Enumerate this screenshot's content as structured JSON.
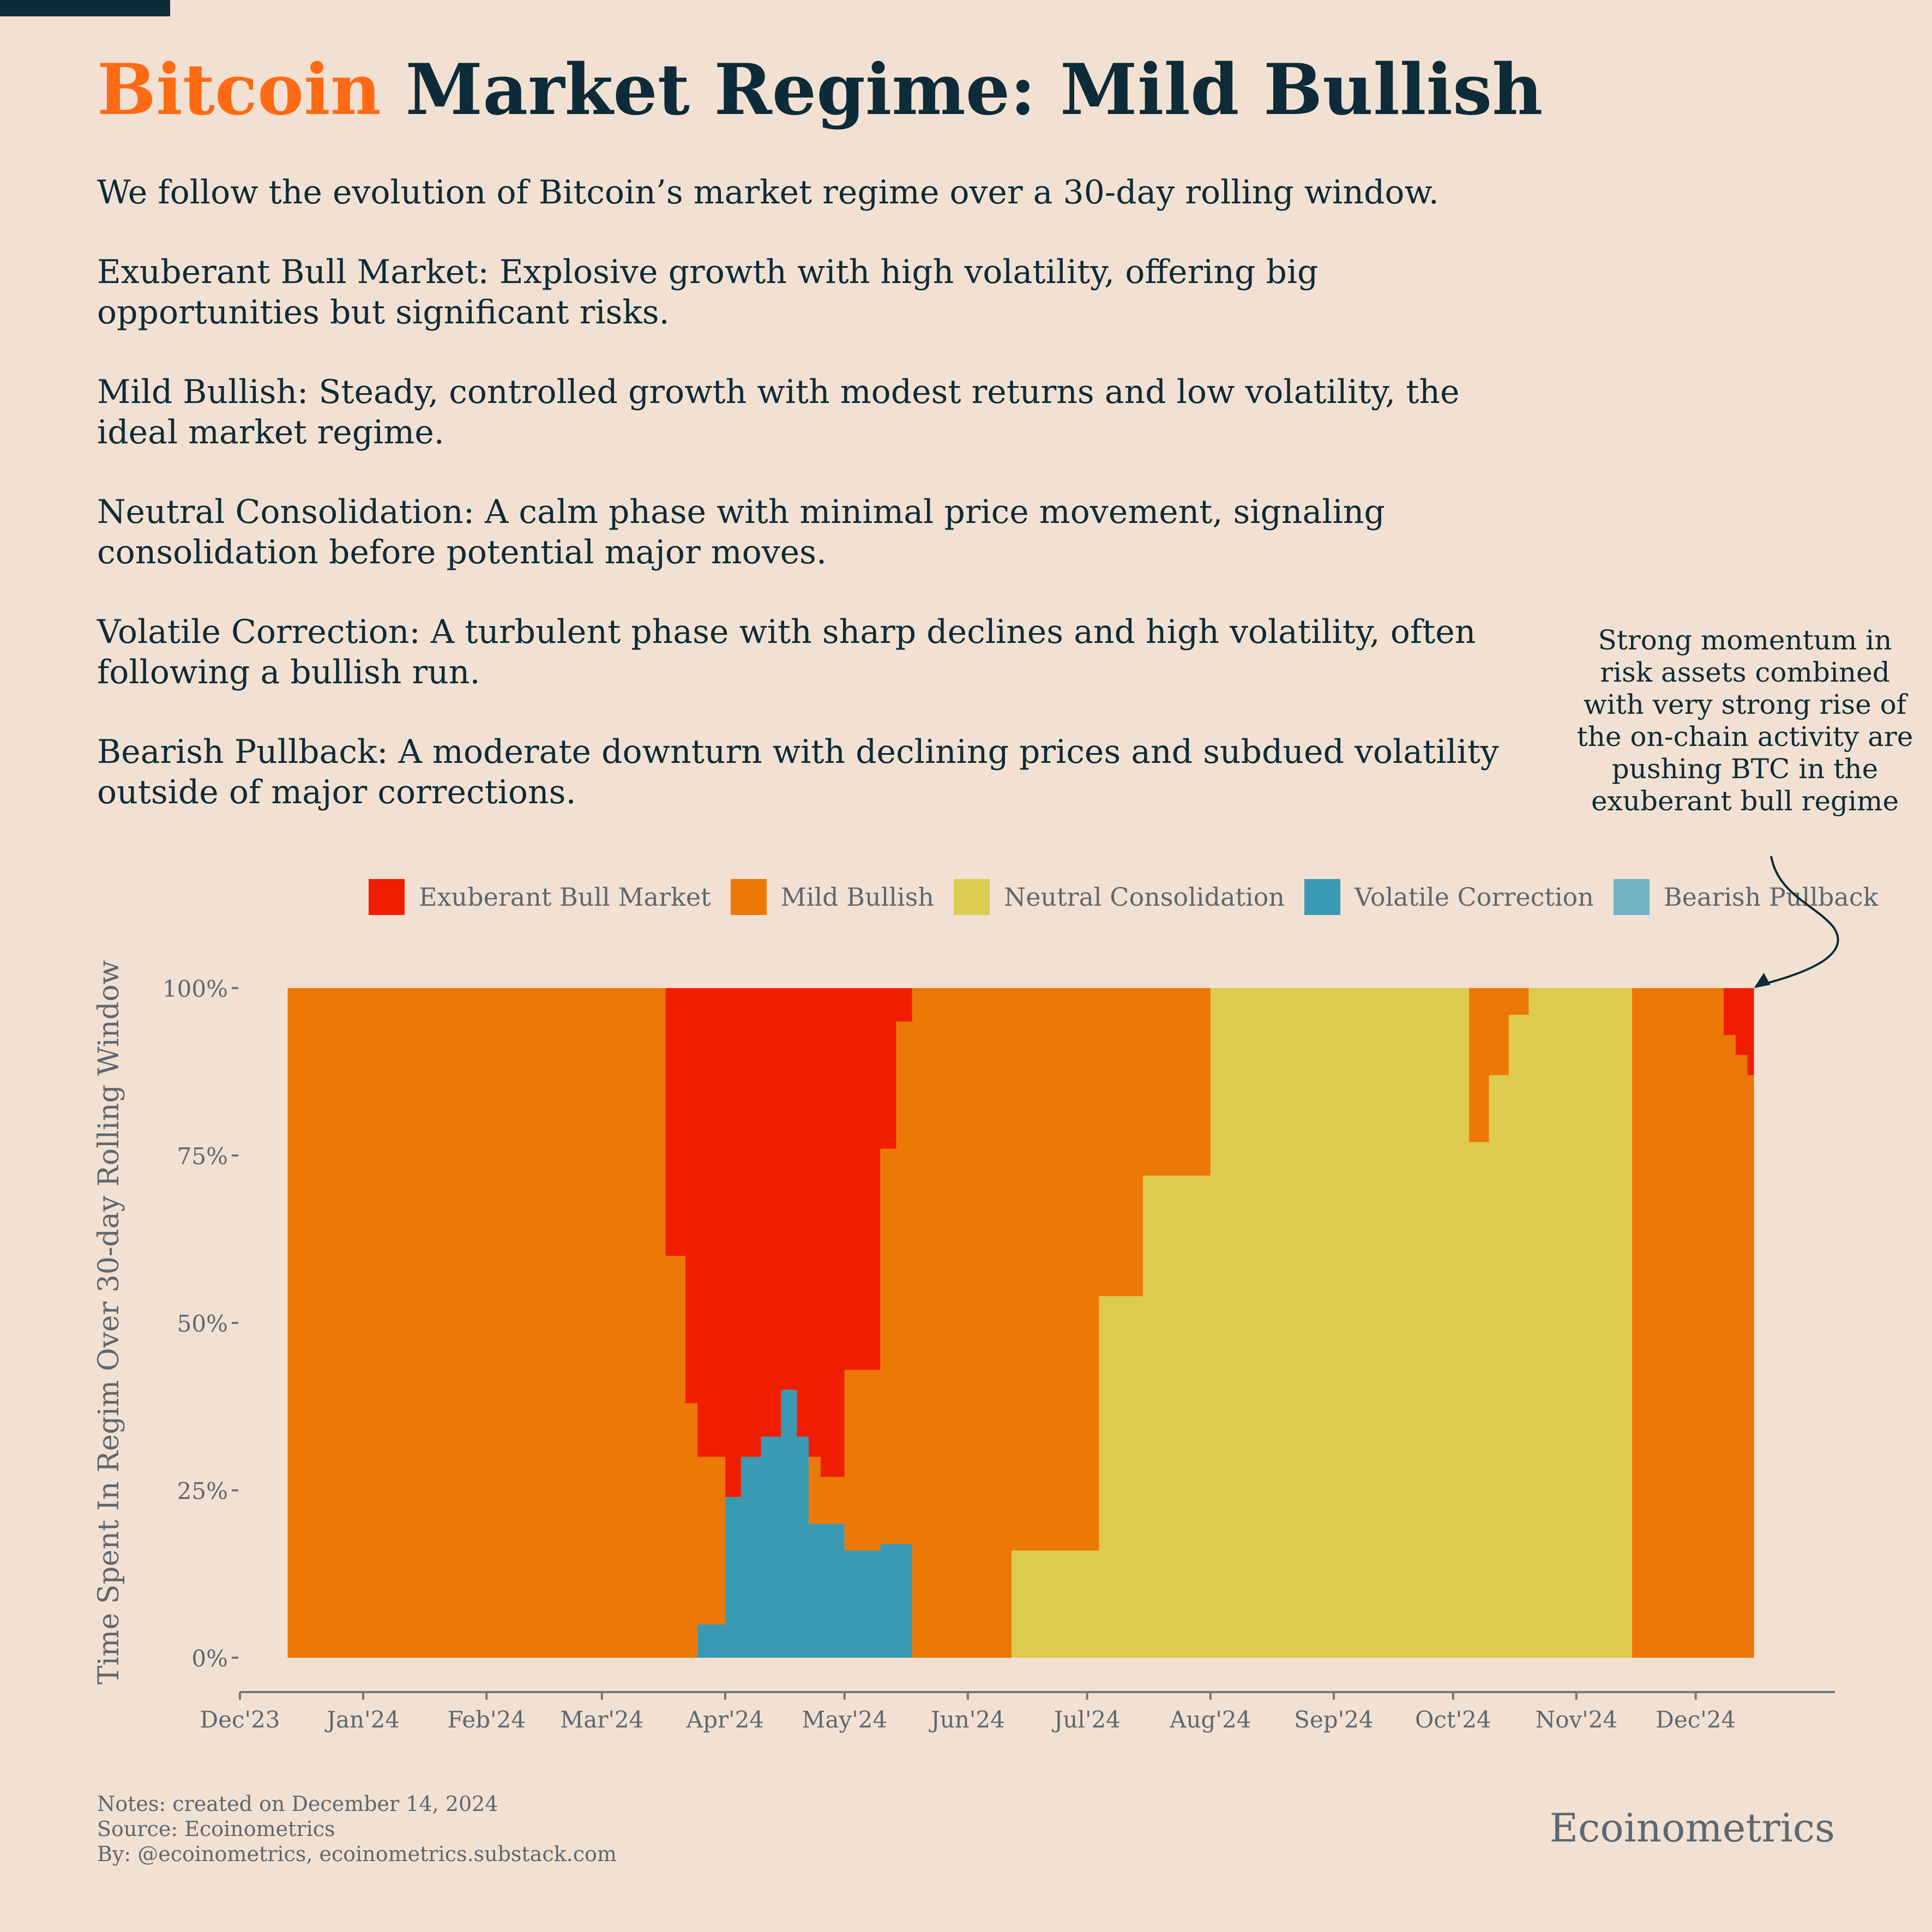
{
  "title": {
    "accent": "Bitcoin",
    "rest": " Market Regime: Mild Bullish"
  },
  "intro": [
    "We follow the evolution of Bitcoin’s market regime over a 30-day rolling window.",
    "Exuberant Bull Market: Explosive growth with high volatility, offering big opportunities but significant risks.",
    "Mild Bullish: Steady, controlled growth with modest returns and low volatility, the ideal market regime.",
    "Neutral Consolidation: A calm phase with minimal price movement, signaling consolidation before potential major moves.",
    "Volatile Correction: A turbulent phase with sharp declines and high volatility, often following a bullish run.",
    "Bearish Pullback: A moderate downturn with declining prices and subdued volatility outside of major corrections."
  ],
  "annotation": "Strong momentum in risk assets combined with very strong rise of the on-chain activity are pushing BTC in the exuberant bull regime",
  "notes": {
    "line1": "Notes: created on December 14, 2024",
    "line2": "Source: Ecoinometrics",
    "line3": "By: @ecoinometrics, ecoinometrics.substack.com"
  },
  "brand": "Ecoinometrics",
  "colors": {
    "background": "#f2e1d2",
    "text_dark": "#0d2b38",
    "accent": "#ff6b14",
    "muted": "#5d6770",
    "axis": "#6b7a82"
  },
  "chart_data": {
    "type": "area",
    "stacked": true,
    "normalized": true,
    "ylabel": "Time Spent In Regim Over 30-day Rolling Window",
    "ylim": [
      0,
      100
    ],
    "y_ticks": [
      "0%",
      "25%",
      "50%",
      "75%",
      "100%"
    ],
    "x_range": [
      "2023-12-01",
      "2025-01-05"
    ],
    "x_ticks": [
      "Dec'23",
      "Jan'24",
      "Feb'24",
      "Mar'24",
      "Apr'24",
      "May'24",
      "Jun'24",
      "Jul'24",
      "Aug'24",
      "Sep'24",
      "Oct'24",
      "Nov'24",
      "Dec'24"
    ],
    "x_tick_dates": [
      "2023-12-01",
      "2024-01-01",
      "2024-02-01",
      "2024-03-01",
      "2024-04-01",
      "2024-05-01",
      "2024-06-01",
      "2024-07-01",
      "2024-08-01",
      "2024-09-01",
      "2024-10-01",
      "2024-11-01",
      "2024-12-01"
    ],
    "legend_position": "top",
    "x": [
      "2023-12-13",
      "2024-03-07",
      "2024-03-17",
      "2024-03-22",
      "2024-03-25",
      "2024-04-01",
      "2024-04-05",
      "2024-04-10",
      "2024-04-15",
      "2024-04-19",
      "2024-04-22",
      "2024-04-25",
      "2024-05-01",
      "2024-05-10",
      "2024-05-14",
      "2024-05-18",
      "2024-06-02",
      "2024-06-12",
      "2024-07-04",
      "2024-07-15",
      "2024-08-01",
      "2024-09-01",
      "2024-09-20",
      "2024-09-25",
      "2024-10-05",
      "2024-10-10",
      "2024-10-15",
      "2024-10-20",
      "2024-10-24",
      "2024-11-15",
      "2024-12-08",
      "2024-12-11",
      "2024-12-14"
    ],
    "series": [
      {
        "name": "Exuberant Bull Market",
        "color": "#f01e00",
        "values": [
          0,
          0,
          40,
          62,
          70,
          76,
          70,
          67,
          60,
          67,
          70,
          73,
          57,
          24,
          5,
          0,
          0,
          0,
          0,
          0,
          0,
          0,
          0,
          0,
          0,
          0,
          0,
          0,
          0,
          0,
          7,
          10,
          13
        ]
      },
      {
        "name": "Mild Bullish",
        "color": "#ec7805",
        "values": [
          100,
          100,
          60,
          38,
          25,
          0,
          0,
          0,
          0,
          0,
          10,
          7,
          27,
          59,
          78,
          100,
          100,
          84,
          46,
          28,
          0,
          0,
          0,
          0,
          23,
          13,
          4,
          0,
          0,
          100,
          93,
          90,
          87
        ]
      },
      {
        "name": "Neutral Consolidation",
        "color": "#dccb4f",
        "values": [
          0,
          0,
          0,
          0,
          0,
          0,
          0,
          0,
          0,
          0,
          0,
          0,
          0,
          0,
          0,
          0,
          0,
          16,
          54,
          72,
          100,
          100,
          100,
          100,
          77,
          87,
          96,
          100,
          100,
          0,
          0,
          0,
          0
        ]
      },
      {
        "name": "Volatile Correction",
        "color": "#3a9ab3",
        "values": [
          0,
          0,
          0,
          0,
          5,
          24,
          30,
          33,
          40,
          33,
          20,
          20,
          16,
          17,
          17,
          0,
          0,
          0,
          0,
          0,
          0,
          0,
          0,
          0,
          0,
          0,
          0,
          0,
          0,
          0,
          0,
          0,
          0
        ]
      },
      {
        "name": "Bearish Pullback",
        "color": "#6fb3c5",
        "values": [
          0,
          0,
          0,
          0,
          0,
          0,
          0,
          0,
          0,
          0,
          0,
          0,
          0,
          0,
          0,
          0,
          0,
          0,
          0,
          0,
          0,
          0,
          0,
          0,
          0,
          0,
          0,
          0,
          0,
          0,
          0,
          0,
          0
        ]
      }
    ],
    "annotation_target": {
      "x": "2024-12-14",
      "y": 100
    }
  }
}
